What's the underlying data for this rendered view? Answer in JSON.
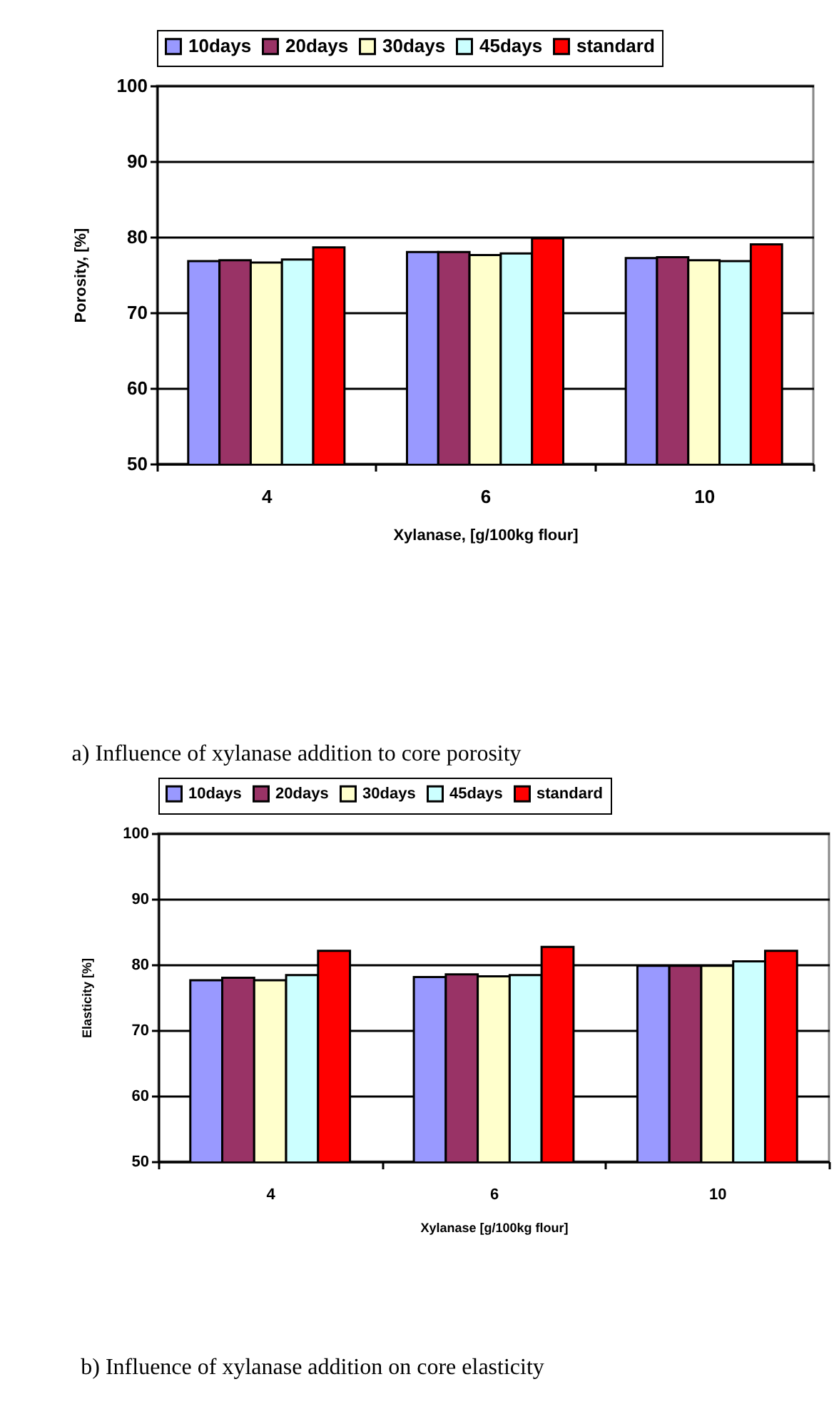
{
  "chart_data": [
    {
      "type": "bar",
      "xlabel": "Xylanase, [g/100kg flour]",
      "ylabel": "Porosity, [%]",
      "categories": [
        "4",
        "6",
        "10"
      ],
      "series": [
        {
          "name": "10days",
          "color": "#9999ff",
          "values": [
            76.8,
            78.0,
            77.2
          ]
        },
        {
          "name": "20days",
          "color": "#993366",
          "values": [
            76.9,
            78.0,
            77.3
          ]
        },
        {
          "name": "30days",
          "color": "#ffffcc",
          "values": [
            76.6,
            77.6,
            76.9
          ]
        },
        {
          "name": "45days",
          "color": "#ccffff",
          "values": [
            77.0,
            77.8,
            76.8
          ]
        },
        {
          "name": "standard",
          "color": "#ff0000",
          "values": [
            78.6,
            79.8,
            79.0
          ]
        }
      ],
      "ylim": [
        50,
        100
      ],
      "yticks": [
        50,
        60,
        70,
        80,
        90,
        100
      ],
      "grid": "y",
      "legend": "top",
      "annotations": [
        "a)    Influence of xylanase addition to core porosity"
      ]
    },
    {
      "type": "bar",
      "xlabel": "Xylanase  [g/100kg flour]",
      "ylabel": "Elasticity  [%]",
      "categories": [
        "4",
        "6",
        "10"
      ],
      "series": [
        {
          "name": "10days",
          "color": "#9999ff",
          "values": [
            77.6,
            78.1,
            79.8
          ]
        },
        {
          "name": "20days",
          "color": "#993366",
          "values": [
            78.0,
            78.5,
            79.8
          ]
        },
        {
          "name": "30days",
          "color": "#ffffcc",
          "values": [
            77.6,
            78.2,
            79.8
          ]
        },
        {
          "name": "45days",
          "color": "#ccffff",
          "values": [
            78.4,
            78.4,
            80.5
          ]
        },
        {
          "name": "standard",
          "color": "#ff0000",
          "values": [
            82.1,
            82.7,
            82.1
          ]
        }
      ],
      "ylim": [
        50,
        100
      ],
      "yticks": [
        50,
        60,
        70,
        80,
        90,
        100
      ],
      "grid": "y",
      "legend": "top",
      "annotations": [
        "b)  Influence  of  xylanase  addition  on  core  elasticity"
      ]
    }
  ]
}
